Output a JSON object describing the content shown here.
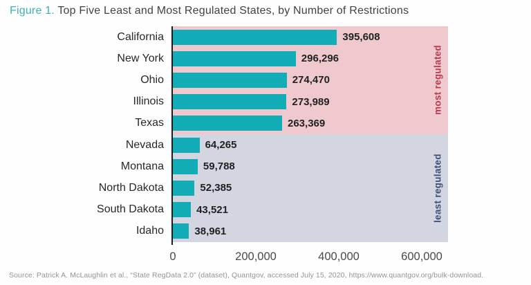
{
  "title": {
    "prefix": "Figure 1.",
    "text": "Top Five Least and Most Regulated States, by Number of Restrictions"
  },
  "chart_data": {
    "type": "bar",
    "orientation": "horizontal",
    "title": "Top Five Least and Most Regulated States, by Number of Restrictions",
    "categories": [
      "California",
      "New York",
      "Ohio",
      "Illinois",
      "Texas",
      "Nevada",
      "Montana",
      "North Dakota",
      "South Dakota",
      "Idaho"
    ],
    "values": [
      395608,
      296296,
      274470,
      273989,
      263369,
      64265,
      59788,
      52385,
      43521,
      38961
    ],
    "value_labels": [
      "395,608",
      "296,296",
      "274,470",
      "273,989",
      "263,369",
      "64,265",
      "59,788",
      "52,385",
      "43,521",
      "38,961"
    ],
    "groups": [
      {
        "name": "most regulated",
        "band_color": "#f0c9ce",
        "label_color": "#b73a4e",
        "count": 5
      },
      {
        "name": "least regulated",
        "band_color": "#d3d6e1",
        "label_color": "#3d4e79",
        "count": 5
      }
    ],
    "bar_color": "#11acb6",
    "x_tick_labels": [
      "0",
      "200,000",
      "400,000",
      "600,000"
    ],
    "x_tick_values": [
      0,
      200000,
      400000,
      600000
    ],
    "xlim": [
      0,
      663333
    ],
    "grid": false,
    "legend_position": "right-rotated-band-labels"
  },
  "source": "Source: Patrick A. McLaughlin et al., “State RegData 2.0” (dataset), Quantgov, accessed July 15, 2020, https://www.quantgov.org/bulk-download."
}
